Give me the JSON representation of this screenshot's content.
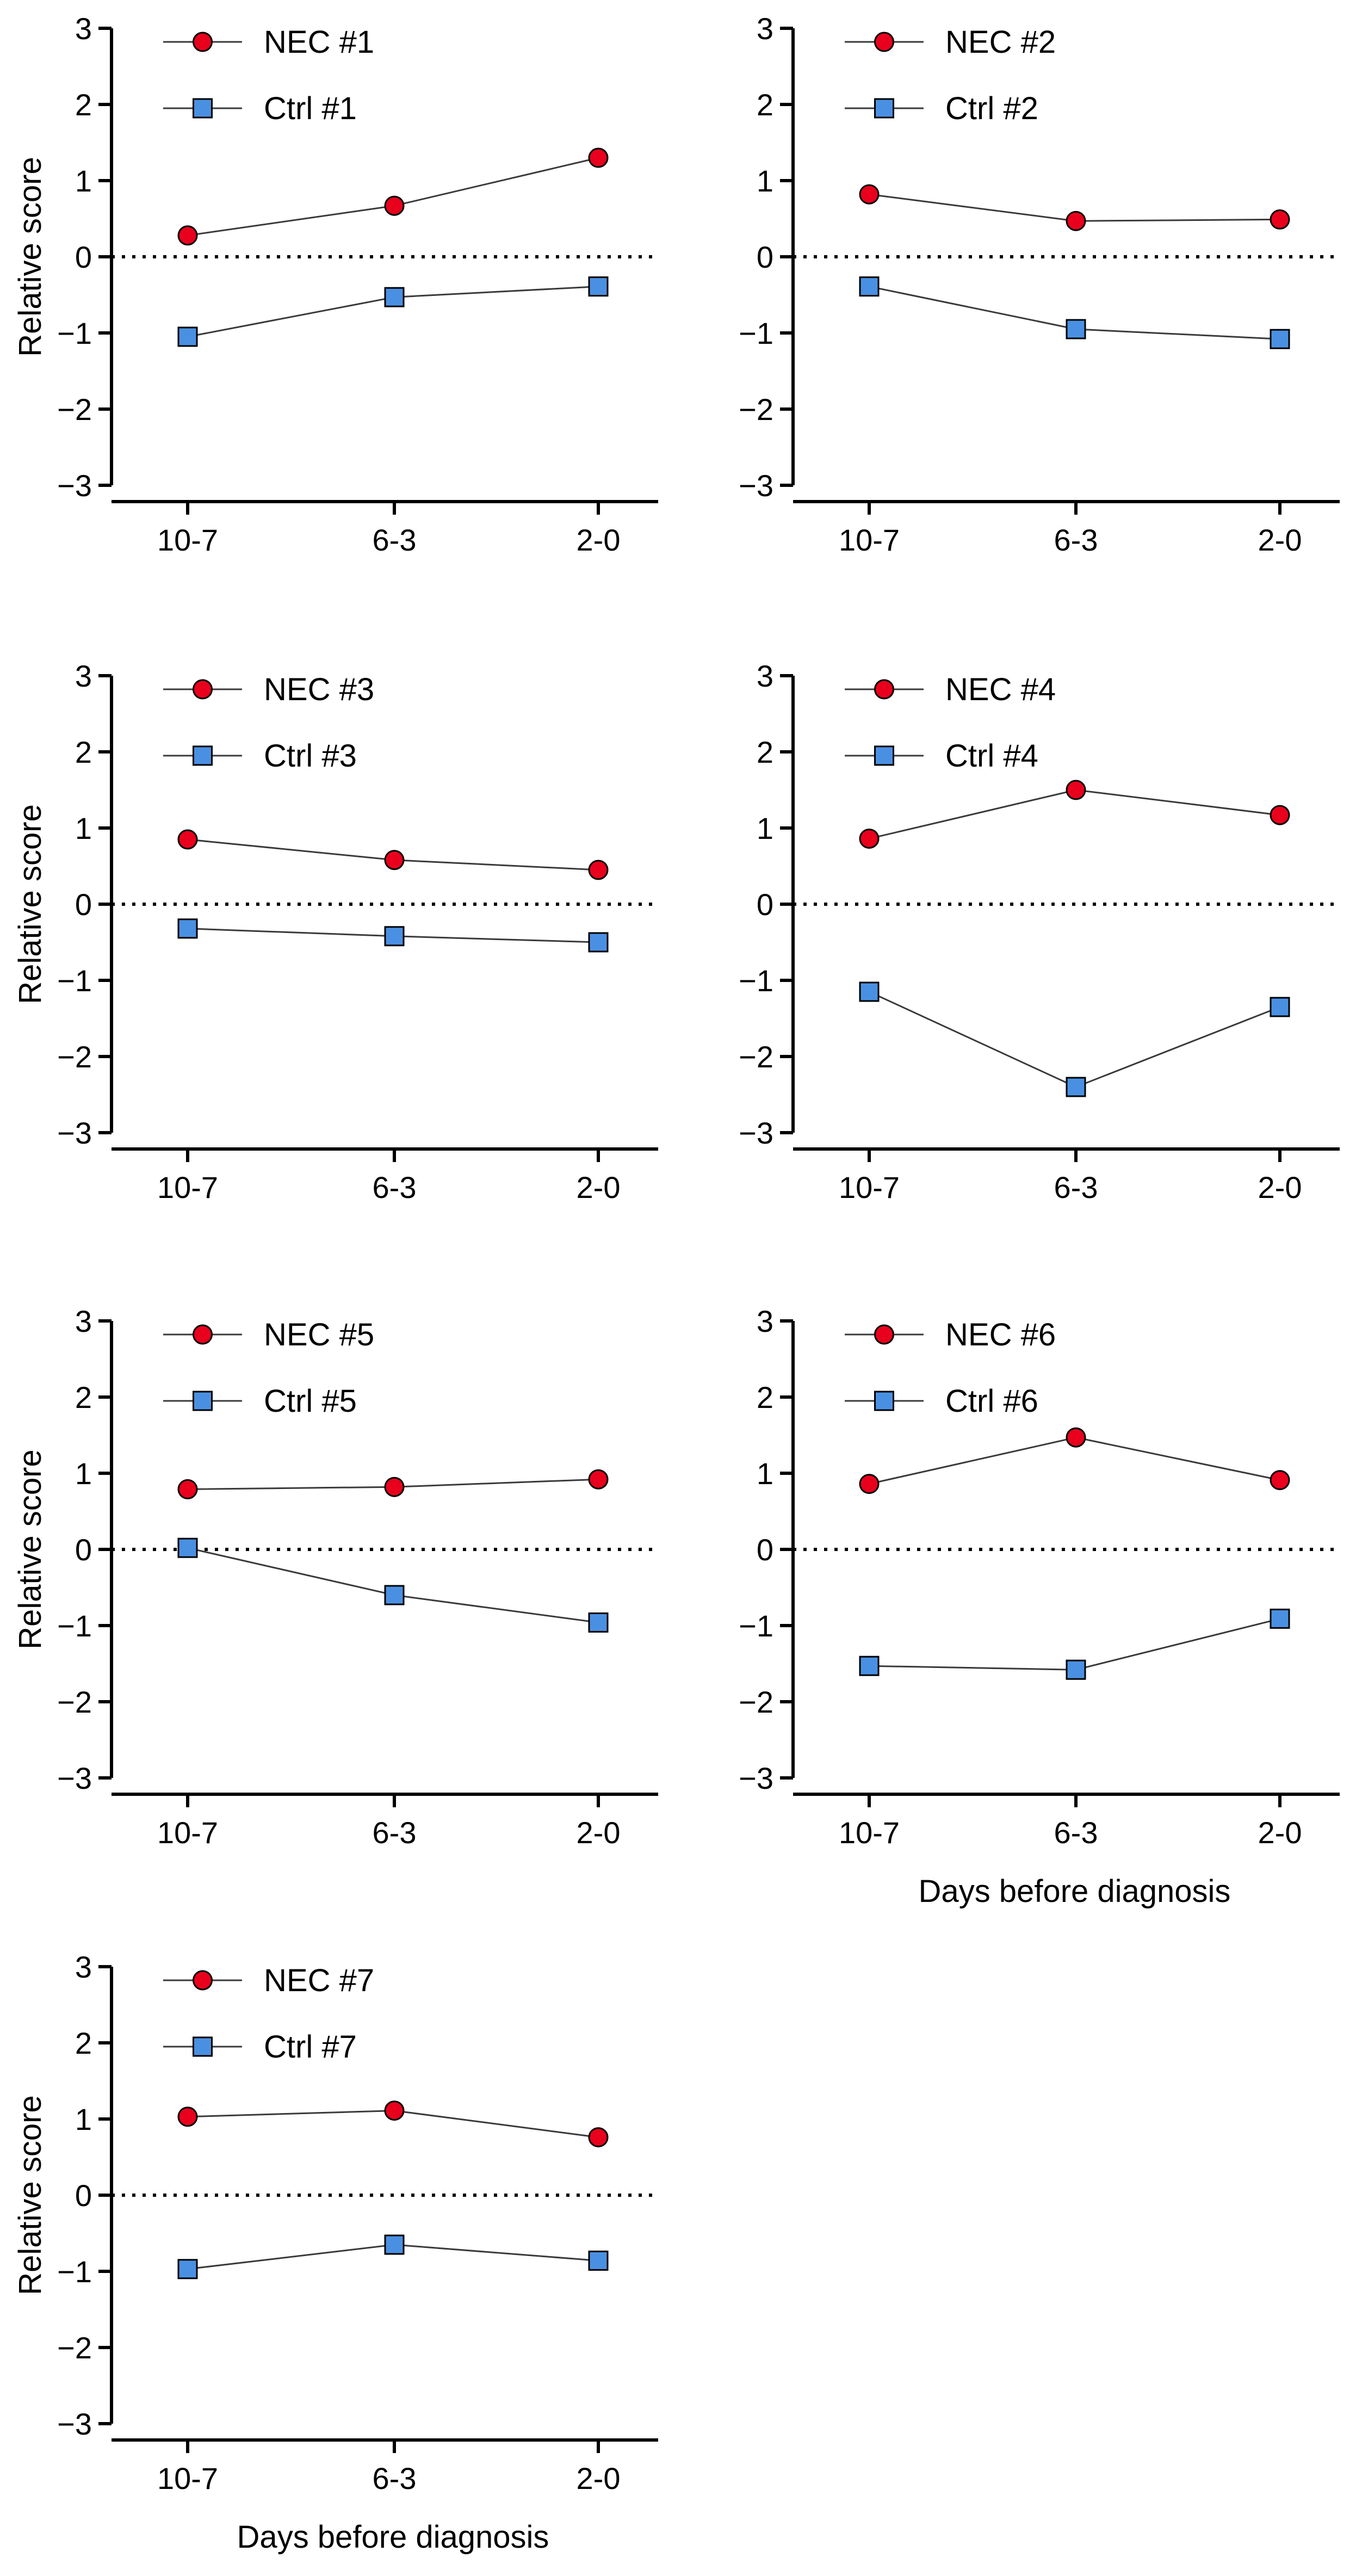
{
  "figure": {
    "x_axis_title": "Days before diagnosis"
  },
  "chart_data": [
    {
      "type": "line",
      "title": "",
      "categories": [
        "10-7",
        "6-3",
        "2-0"
      ],
      "ylabel": "Relative score",
      "xlabel": "",
      "ylim": [
        -3,
        3
      ],
      "yticks": [
        "3",
        "2",
        "1",
        "0",
        "−1",
        "−2",
        "−3"
      ],
      "reference_line": 0,
      "series": [
        {
          "name": "NEC #1",
          "marker": "circle",
          "color": "#e8001c",
          "values": [
            0.28,
            0.67,
            1.3
          ]
        },
        {
          "name": "Ctrl #1",
          "marker": "square",
          "color": "#4a90e2",
          "values": [
            -1.05,
            -0.53,
            -0.39
          ]
        }
      ]
    },
    {
      "type": "line",
      "title": "",
      "categories": [
        "10-7",
        "6-3",
        "2-0"
      ],
      "ylabel": "",
      "xlabel": "",
      "ylim": [
        -3,
        3
      ],
      "yticks": [
        "3",
        "2",
        "1",
        "0",
        "−1",
        "−2",
        "−3"
      ],
      "reference_line": 0,
      "series": [
        {
          "name": "NEC #2",
          "marker": "circle",
          "color": "#e8001c",
          "values": [
            0.82,
            0.47,
            0.49
          ]
        },
        {
          "name": "Ctrl #2",
          "marker": "square",
          "color": "#4a90e2",
          "values": [
            -0.39,
            -0.95,
            -1.08
          ]
        }
      ]
    },
    {
      "type": "line",
      "title": "",
      "categories": [
        "10-7",
        "6-3",
        "2-0"
      ],
      "ylabel": "Relative score",
      "xlabel": "",
      "ylim": [
        -3,
        3
      ],
      "yticks": [
        "3",
        "2",
        "1",
        "0",
        "−1",
        "−2",
        "−3"
      ],
      "reference_line": 0,
      "series": [
        {
          "name": "NEC #3",
          "marker": "circle",
          "color": "#e8001c",
          "values": [
            0.85,
            0.58,
            0.45
          ]
        },
        {
          "name": "Ctrl #3",
          "marker": "square",
          "color": "#4a90e2",
          "values": [
            -0.32,
            -0.42,
            -0.5
          ]
        }
      ]
    },
    {
      "type": "line",
      "title": "",
      "categories": [
        "10-7",
        "6-3",
        "2-0"
      ],
      "ylabel": "",
      "xlabel": "",
      "ylim": [
        -3,
        3
      ],
      "yticks": [
        "3",
        "2",
        "1",
        "0",
        "−1",
        "−2",
        "−3"
      ],
      "reference_line": 0,
      "series": [
        {
          "name": "NEC #4",
          "marker": "circle",
          "color": "#e8001c",
          "values": [
            0.86,
            1.5,
            1.17
          ]
        },
        {
          "name": "Ctrl #4",
          "marker": "square",
          "color": "#4a90e2",
          "values": [
            -1.15,
            -2.4,
            -1.35
          ]
        }
      ]
    },
    {
      "type": "line",
      "title": "",
      "categories": [
        "10-7",
        "6-3",
        "2-0"
      ],
      "ylabel": "Relative score",
      "xlabel": "",
      "ylim": [
        -3,
        3
      ],
      "yticks": [
        "3",
        "2",
        "1",
        "0",
        "−1",
        "−2",
        "−3"
      ],
      "reference_line": 0,
      "series": [
        {
          "name": "NEC #5",
          "marker": "circle",
          "color": "#e8001c",
          "values": [
            0.79,
            0.82,
            0.92
          ]
        },
        {
          "name": "Ctrl #5",
          "marker": "square",
          "color": "#4a90e2",
          "values": [
            0.02,
            -0.6,
            -0.96
          ]
        }
      ]
    },
    {
      "type": "line",
      "title": "",
      "categories": [
        "10-7",
        "6-3",
        "2-0"
      ],
      "ylabel": "",
      "xlabel": "Days before diagnosis",
      "ylim": [
        -3,
        3
      ],
      "yticks": [
        "3",
        "2",
        "1",
        "0",
        "−1",
        "−2",
        "−3"
      ],
      "reference_line": 0,
      "series": [
        {
          "name": "NEC #6",
          "marker": "circle",
          "color": "#e8001c",
          "values": [
            0.86,
            1.47,
            0.91
          ]
        },
        {
          "name": "Ctrl #6",
          "marker": "square",
          "color": "#4a90e2",
          "values": [
            -1.53,
            -1.58,
            -0.91
          ]
        }
      ]
    },
    {
      "type": "line",
      "title": "",
      "categories": [
        "10-7",
        "6-3",
        "2-0"
      ],
      "ylabel": "Relative score",
      "xlabel": "Days before diagnosis",
      "ylim": [
        -3,
        3
      ],
      "yticks": [
        "3",
        "2",
        "1",
        "0",
        "−1",
        "−2",
        "−3"
      ],
      "reference_line": 0,
      "series": [
        {
          "name": "NEC #7",
          "marker": "circle",
          "color": "#e8001c",
          "values": [
            1.03,
            1.11,
            0.76
          ]
        },
        {
          "name": "Ctrl #7",
          "marker": "square",
          "color": "#4a90e2",
          "values": [
            -0.97,
            -0.65,
            -0.86
          ]
        }
      ]
    }
  ]
}
